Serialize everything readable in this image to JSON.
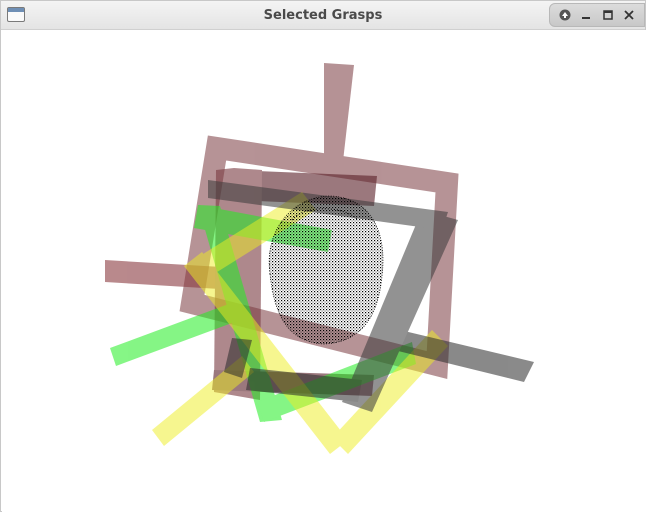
{
  "window": {
    "title": "Selected Grasps"
  },
  "icons": {
    "app": "window-icon",
    "shade": "arrow-up-icon",
    "minimize": "minimize-icon",
    "maximize": "maximize-icon",
    "close": "close-icon"
  },
  "colors": {
    "grasp_brown": "#8a4a50",
    "grasp_dark": "#3a3a3a",
    "grasp_green": "#33ee33",
    "grasp_yellow": "#eeee33",
    "point_cloud": "#000000"
  }
}
